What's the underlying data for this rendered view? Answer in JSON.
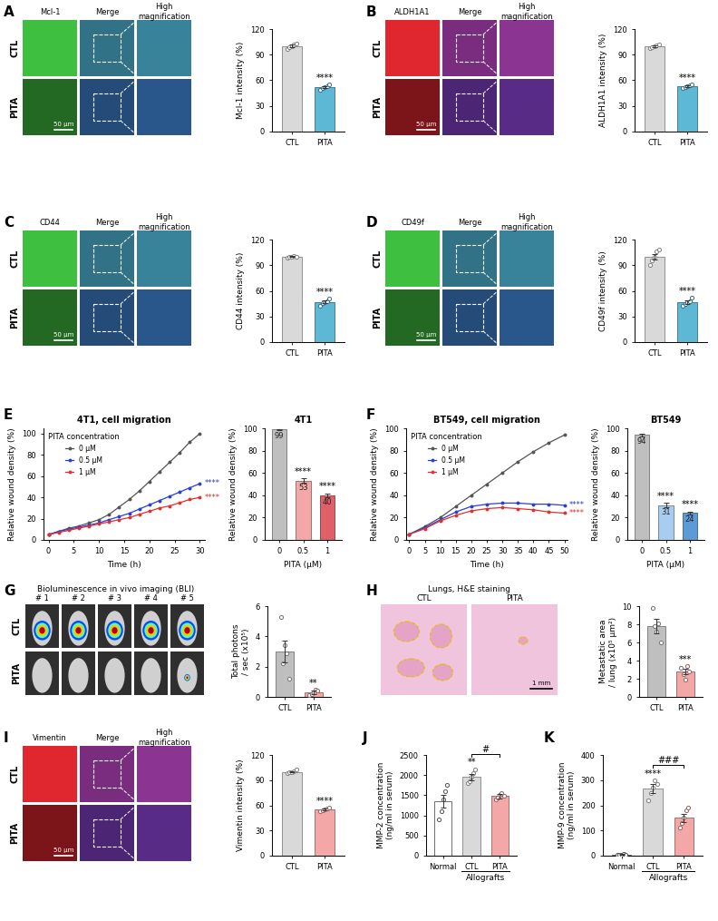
{
  "chart_data": [
    {
      "type": "bar",
      "ylabel": "Mcl-1 intensity (%)",
      "categories": [
        "CTL",
        "PITA"
      ],
      "values": [
        100,
        52
      ],
      "errors": [
        1.5,
        1.5
      ],
      "points": [
        [
          97,
          99,
          100,
          102,
          103
        ],
        [
          49,
          51,
          52,
          53,
          55
        ]
      ],
      "colors": [
        "#d9d9d9",
        "#5db8d6"
      ],
      "ylim": [
        0,
        120
      ],
      "yticks": [
        0,
        30,
        60,
        90,
        120
      ],
      "annotations": [
        {
          "category": "PITA",
          "text": "****"
        }
      ]
    },
    {
      "type": "bar",
      "ylabel": "ALDH1A1 intensity (%)",
      "categories": [
        "CTL",
        "PITA"
      ],
      "values": [
        100,
        53
      ],
      "errors": [
        1.2,
        1.2
      ],
      "points": [
        [
          98,
          99,
          100,
          101,
          102
        ],
        [
          51,
          52,
          53,
          54,
          55
        ]
      ],
      "colors": [
        "#d9d9d9",
        "#5db8d6"
      ],
      "ylim": [
        0,
        120
      ],
      "yticks": [
        0,
        30,
        60,
        90,
        120
      ],
      "annotations": [
        {
          "category": "PITA",
          "text": "****"
        }
      ]
    },
    {
      "type": "bar",
      "ylabel": "CD44 intensity (%)",
      "categories": [
        "CTL",
        "PITA"
      ],
      "values": [
        100,
        47
      ],
      "errors": [
        0.5,
        1.5
      ],
      "points": [
        [
          99,
          100,
          100,
          101,
          100
        ],
        [
          43,
          46,
          47,
          48,
          51
        ]
      ],
      "colors": [
        "#d9d9d9",
        "#5db8d6"
      ],
      "ylim": [
        0,
        120
      ],
      "yticks": [
        0,
        30,
        60,
        90,
        120
      ],
      "annotations": [
        {
          "category": "PITA",
          "text": "****"
        }
      ]
    },
    {
      "type": "bar",
      "ylabel": "CD49f intensity (%)",
      "categories": [
        "CTL",
        "PITA"
      ],
      "values": [
        100,
        47
      ],
      "errors": [
        3,
        2
      ],
      "points": [
        [
          90,
          96,
          100,
          106,
          108
        ],
        [
          43,
          45,
          47,
          48,
          52
        ]
      ],
      "colors": [
        "#d9d9d9",
        "#5db8d6"
      ],
      "ylim": [
        0,
        120
      ],
      "yticks": [
        0,
        30,
        60,
        90,
        120
      ],
      "annotations": [
        {
          "category": "PITA",
          "text": "****"
        }
      ]
    },
    {
      "type": "line",
      "panel": "E",
      "title": "4T1, cell migration",
      "xlabel": "Time (h)",
      "ylabel": "Relative wound density (%)",
      "x": [
        0,
        2,
        4,
        6,
        8,
        10,
        12,
        14,
        16,
        18,
        20,
        22,
        24,
        26,
        28,
        30
      ],
      "series": [
        {
          "name": "0 µM",
          "color": "#555555",
          "values": [
            5,
            8,
            11,
            13,
            16,
            19,
            24,
            31,
            38,
            46,
            55,
            64,
            73,
            82,
            92,
            100
          ]
        },
        {
          "name": "0.5 µM",
          "color": "#2a3fd6",
          "values": [
            5,
            8,
            10,
            12,
            14,
            16,
            19,
            22,
            25,
            29,
            33,
            37,
            41,
            45,
            49,
            53
          ]
        },
        {
          "name": "1 µM",
          "color": "#e03030",
          "values": [
            5,
            7,
            9,
            11,
            13,
            15,
            17,
            19,
            21,
            24,
            27,
            30,
            32,
            35,
            38,
            40
          ]
        }
      ],
      "marker": "o",
      "legend": "upper left",
      "legend_title": "PITA concentration",
      "xlim": [
        -1,
        31
      ],
      "xticks": [
        0,
        5,
        10,
        15,
        20,
        25,
        30
      ],
      "ylim": [
        0,
        105
      ],
      "yticks": [
        0,
        20,
        40,
        60,
        80,
        100
      ],
      "annotations": [
        {
          "series": "0.5 µM",
          "text": "****"
        },
        {
          "series": "1 µM",
          "text": "****"
        }
      ]
    },
    {
      "type": "bar",
      "title": "4T1",
      "xlabel": "PITA (µM)",
      "ylabel": "Relative wound density (%)",
      "categories": [
        "0",
        "0.5",
        "1"
      ],
      "values": [
        99,
        53,
        40
      ],
      "errors": [
        0.5,
        2,
        1.5
      ],
      "data_labels": true,
      "colors": [
        "#bfbfbf",
        "#f4a7a7",
        "#e0606a"
      ],
      "ylim": [
        0,
        100
      ],
      "yticks": [
        0,
        20,
        40,
        60,
        80,
        100
      ],
      "annotations": [
        {
          "category": "0.5",
          "text": "****"
        },
        {
          "category": "1",
          "text": "****"
        }
      ]
    },
    {
      "type": "line",
      "panel": "F",
      "title": "BT549, cell migration",
      "xlabel": "Time (h)",
      "ylabel": "Relative wound density (%)",
      "x": [
        0,
        5,
        10,
        15,
        20,
        25,
        30,
        35,
        40,
        45,
        50
      ],
      "series": [
        {
          "name": "0 µM",
          "color": "#555555",
          "values": [
            5,
            12,
            20,
            30,
            40,
            50,
            60,
            70,
            79,
            87,
            94
          ]
        },
        {
          "name": "0.5 µM",
          "color": "#2a3fd6",
          "values": [
            5,
            11,
            18,
            25,
            30,
            32,
            33,
            33,
            32,
            32,
            31
          ]
        },
        {
          "name": "1 µM",
          "color": "#e03030",
          "values": [
            5,
            10,
            17,
            22,
            26,
            28,
            29,
            28,
            27,
            25,
            24
          ]
        }
      ],
      "marker": "o",
      "legend": "upper left",
      "legend_title": "PITA concentration",
      "xlim": [
        -1,
        51
      ],
      "xticks": [
        0,
        5,
        10,
        15,
        20,
        25,
        30,
        35,
        40,
        45,
        50
      ],
      "ylim": [
        0,
        100
      ],
      "yticks": [
        0,
        20,
        40,
        60,
        80,
        100
      ],
      "annotations": [
        {
          "series": "0.5 µM",
          "text": "****"
        },
        {
          "series": "1 µM",
          "text": "****"
        }
      ]
    },
    {
      "type": "bar",
      "title": "BT549",
      "xlabel": "PITA (µM)",
      "ylabel": "Relative wound density (%)",
      "categories": [
        "0",
        "0.5",
        "1"
      ],
      "values": [
        94,
        31,
        24
      ],
      "errors": [
        1,
        2,
        1.5
      ],
      "data_labels": true,
      "colors": [
        "#bfbfbf",
        "#a9cdee",
        "#5d9bd8"
      ],
      "ylim": [
        0,
        100
      ],
      "yticks": [
        0,
        20,
        40,
        60,
        80,
        100
      ],
      "annotations": [
        {
          "category": "0.5",
          "text": "****"
        },
        {
          "category": "1",
          "text": "****"
        }
      ]
    },
    {
      "type": "bar",
      "ylabel": "Total photons\n/ sec (x10⁵)",
      "categories": [
        "CTL",
        "PITA"
      ],
      "values": [
        3.0,
        0.3
      ],
      "errors": [
        0.7,
        0.1
      ],
      "points": [
        [
          5.3,
          2.2,
          3.4,
          2.9,
          1.2
        ],
        [
          0.1,
          0.2,
          0.3,
          0.5,
          0.4
        ]
      ],
      "colors": [
        "#bfbfbf",
        "#f4a7a7"
      ],
      "ylim": [
        0,
        6
      ],
      "yticks": [
        0,
        2,
        4,
        6
      ],
      "annotations": [
        {
          "category": "PITA",
          "text": "**"
        }
      ]
    },
    {
      "type": "bar",
      "ylabel": "Metastatic area\n/ lung (x10⁵ µm²)",
      "categories": [
        "CTL",
        "PITA"
      ],
      "values": [
        7.8,
        2.8
      ],
      "errors": [
        0.8,
        0.3
      ],
      "points": [
        [
          9.8,
          7.8,
          7.2,
          8.1,
          6.0
        ],
        [
          3.2,
          2.5,
          1.9,
          3.4,
          2.8
        ]
      ],
      "colors": [
        "#bfbfbf",
        "#f4a7a7"
      ],
      "ylim": [
        0,
        10
      ],
      "yticks": [
        0,
        2,
        4,
        6,
        8,
        10
      ],
      "annotations": [
        {
          "category": "PITA",
          "text": "***"
        }
      ]
    },
    {
      "type": "bar",
      "ylabel": "Vimentin intensity (%)",
      "categories": [
        "CTL",
        "PITA"
      ],
      "values": [
        100,
        55
      ],
      "errors": [
        1,
        1
      ],
      "points": [
        [
          98,
          99,
          100,
          101,
          103
        ],
        [
          53,
          54,
          55,
          56,
          57
        ]
      ],
      "colors": [
        "#d9d9d9",
        "#f4a7a7"
      ],
      "ylim": [
        0,
        120
      ],
      "yticks": [
        0,
        30,
        60,
        90,
        120
      ],
      "annotations": [
        {
          "category": "PITA",
          "text": "****"
        }
      ]
    },
    {
      "type": "bar",
      "panel": "J",
      "ylabel": "MMP-2 concentration\n(ng/ml in serum)",
      "categories": [
        "Normal",
        "CTL",
        "PITA"
      ],
      "values": [
        1350,
        1950,
        1480
      ],
      "errors": [
        150,
        80,
        50
      ],
      "points": [
        [
          900,
          1100,
          1400,
          1600,
          1750
        ],
        [
          1800,
          1850,
          1950,
          2050,
          2150
        ],
        [
          1400,
          1450,
          1500,
          1550,
          1480
        ]
      ],
      "colors": [
        "#ffffff",
        "#d9d9d9",
        "#f4a7a7"
      ],
      "ylim": [
        0,
        2500
      ],
      "yticks": [
        0,
        500,
        1000,
        1500,
        2000,
        2500
      ],
      "group": {
        "text": "Allografts",
        "categories": [
          "CTL",
          "PITA"
        ]
      },
      "annotations": [
        {
          "category": "CTL",
          "text": "**"
        },
        {
          "categories": [
            "CTL",
            "PITA"
          ],
          "text": "#"
        }
      ]
    },
    {
      "type": "bar",
      "panel": "K",
      "ylabel": "MMP-9 concentration\n(ng/ml in serum)",
      "categories": [
        "Normal",
        "CTL",
        "PITA"
      ],
      "values": [
        5,
        265,
        150
      ],
      "errors": [
        1,
        18,
        17
      ],
      "points": [
        [
          2,
          3,
          5,
          6,
          4
        ],
        [
          220,
          250,
          270,
          300,
          285
        ],
        [
          110,
          130,
          150,
          180,
          190
        ]
      ],
      "colors": [
        "#ffffff",
        "#d9d9d9",
        "#f4a7a7"
      ],
      "ylim": [
        0,
        400
      ],
      "yticks": [
        0,
        100,
        200,
        300,
        400
      ],
      "group": {
        "text": "Allografts",
        "categories": [
          "CTL",
          "PITA"
        ]
      },
      "annotations": [
        {
          "category": "CTL",
          "text": "****"
        },
        {
          "categories": [
            "CTL",
            "PITA"
          ],
          "text": "###"
        }
      ]
    }
  ],
  "image_panels": [
    {
      "type": "fluorescence",
      "panel": "A",
      "columns": [
        "Mcl-1",
        "Merge",
        "High\nmagnification"
      ],
      "rows": [
        "CTL",
        "PITA"
      ],
      "scale_bar": "50 µm",
      "color": "#3fbf3f"
    },
    {
      "type": "fluorescence",
      "panel": "B",
      "columns": [
        "ALDH1A1",
        "Merge",
        "High\nmagnification"
      ],
      "rows": [
        "CTL",
        "PITA"
      ],
      "scale_bar": "50 µm",
      "color": "#e0262e"
    },
    {
      "type": "fluorescence",
      "panel": "C",
      "columns": [
        "CD44",
        "Merge",
        "High\nmagnification"
      ],
      "rows": [
        "CTL",
        "PITA"
      ],
      "scale_bar": "50 µm",
      "color": "#3fbf3f"
    },
    {
      "type": "fluorescence",
      "panel": "D",
      "columns": [
        "CD49f",
        "Merge",
        "High\nmagnification"
      ],
      "rows": [
        "CTL",
        "PITA"
      ],
      "scale_bar": "50 µm",
      "color": "#3fbf3f"
    },
    {
      "type": "bli",
      "panel": "G",
      "title": "Bioluminescence in vivo imaging (BLI)",
      "columns": [
        "# 1",
        "# 2",
        "# 3",
        "# 4",
        "# 5"
      ],
      "rows": [
        "CTL",
        "PITA"
      ]
    },
    {
      "type": "histology",
      "panel": "H",
      "title": "Lungs, H&E staining",
      "columns": [
        "CTL",
        "PITA"
      ],
      "scale_bar": "1 mm",
      "color": "#f1c4de"
    },
    {
      "type": "fluorescence",
      "panel": "I",
      "columns": [
        "Vimentin",
        "Merge",
        "High\nmagnification"
      ],
      "rows": [
        "CTL",
        "PITA"
      ],
      "scale_bar": "50 µm",
      "color": "#e0262e"
    }
  ]
}
